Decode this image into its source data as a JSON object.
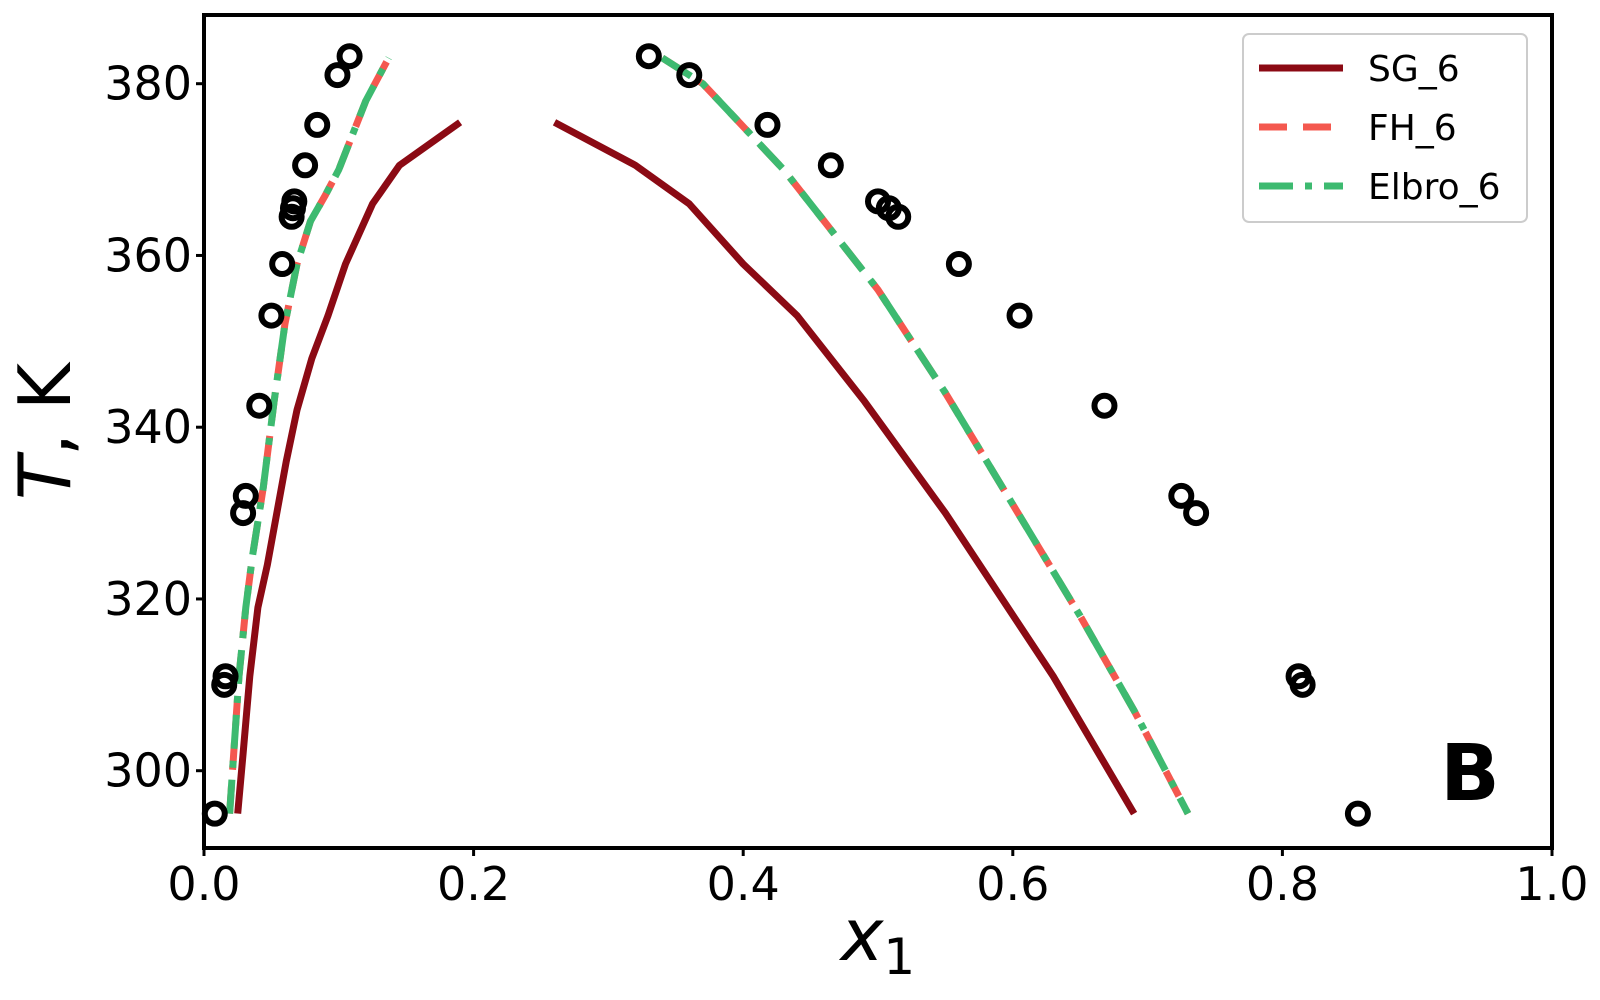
{
  "chart_data": {
    "type": "line",
    "xlabel": "x",
    "xlabel_subscript": "1",
    "ylabel_italic": "T",
    "ylabel_rest": ", K",
    "xlim": [
      0.0,
      1.0
    ],
    "ylim": [
      291,
      388
    ],
    "x_ticks": [
      0.0,
      0.2,
      0.4,
      0.6,
      0.8,
      1.0
    ],
    "x_tick_labels": [
      "0.0",
      "0.2",
      "0.4",
      "0.6",
      "0.8",
      "1.0"
    ],
    "y_ticks": [
      300,
      320,
      340,
      360,
      380
    ],
    "y_tick_labels": [
      "300",
      "320",
      "340",
      "360",
      "380"
    ],
    "grid": false,
    "legend_position": "top-right",
    "panel_label": "B",
    "series": [
      {
        "name": "SG_6",
        "color": "#8b0a14",
        "style": "solid",
        "segments": [
          {
            "x": [
              0.025,
              0.029,
              0.034,
              0.04,
              0.047,
              0.054,
              0.061,
              0.069,
              0.08,
              0.092,
              0.105,
              0.125,
              0.145,
              0.19
            ],
            "y": [
              295.0,
              302.0,
              311.0,
              319.0,
              324.0,
              330.0,
              336.0,
              342.0,
              348.0,
              353.0,
              359.0,
              366.0,
              370.5,
              375.5
            ]
          },
          {
            "x": [
              0.26,
              0.32,
              0.36,
              0.4,
              0.44,
              0.49,
              0.55,
              0.63,
              0.69
            ],
            "y": [
              375.5,
              370.5,
              366.0,
              359.0,
              353.0,
              343.0,
              330.0,
              311.0,
              295.0
            ]
          }
        ]
      },
      {
        "name": "FH_6",
        "color": "#f4584f",
        "style": "dashed",
        "segments": [
          {
            "x": [
              0.019,
              0.022,
              0.026,
              0.031,
              0.036,
              0.044,
              0.052,
              0.06,
              0.069,
              0.079,
              0.09,
              0.1,
              0.11,
              0.12,
              0.137
            ],
            "y": [
              295.0,
              302.0,
              311.0,
              319.0,
              325.0,
              333.0,
              343.0,
              352.0,
              359.0,
              364.0,
              367.0,
              370.0,
              374.0,
              378.0,
              383.0
            ]
          },
          {
            "x": [
              0.34,
              0.37,
              0.4,
              0.43,
              0.46,
              0.5,
              0.55,
              0.6,
              0.65,
              0.69,
              0.73
            ],
            "y": [
              383.0,
              380.0,
              375.0,
              370.0,
              364.0,
              356.0,
              344.0,
              331.0,
              318.0,
              307.0,
              295.0
            ]
          }
        ]
      },
      {
        "name": "Elbro_6",
        "color": "#3dba70",
        "style": "dashdot",
        "segments": [
          {
            "x": [
              0.019,
              0.022,
              0.026,
              0.031,
              0.036,
              0.044,
              0.052,
              0.06,
              0.069,
              0.079,
              0.09,
              0.1,
              0.11,
              0.12,
              0.137
            ],
            "y": [
              295.0,
              302.0,
              311.0,
              319.0,
              325.0,
              333.0,
              343.0,
              352.0,
              359.0,
              364.0,
              367.0,
              370.0,
              374.0,
              378.0,
              383.0
            ]
          },
          {
            "x": [
              0.34,
              0.37,
              0.4,
              0.43,
              0.46,
              0.5,
              0.55,
              0.6,
              0.65,
              0.69,
              0.73
            ],
            "y": [
              383.0,
              380.0,
              375.0,
              370.0,
              364.0,
              356.0,
              344.0,
              331.0,
              318.0,
              307.0,
              295.0
            ]
          }
        ]
      }
    ],
    "experimental_points": {
      "marker": "open-circle",
      "color": "#000000",
      "x": [
        0.008,
        0.015,
        0.016,
        0.029,
        0.031,
        0.041,
        0.05,
        0.058,
        0.065,
        0.066,
        0.067,
        0.075,
        0.084,
        0.099,
        0.108,
        0.33,
        0.36,
        0.418,
        0.465,
        0.5,
        0.508,
        0.515,
        0.56,
        0.605,
        0.668,
        0.725,
        0.736,
        0.812,
        0.815,
        0.856
      ],
      "y": [
        295.0,
        310.0,
        311.0,
        330.0,
        332.0,
        342.5,
        353.0,
        359.0,
        364.5,
        365.5,
        366.3,
        370.5,
        375.2,
        381.0,
        383.2,
        383.2,
        381.0,
        375.2,
        370.5,
        366.3,
        365.5,
        364.5,
        359.0,
        353.0,
        342.5,
        332.0,
        330.0,
        311.0,
        310.0,
        295.0
      ]
    }
  }
}
